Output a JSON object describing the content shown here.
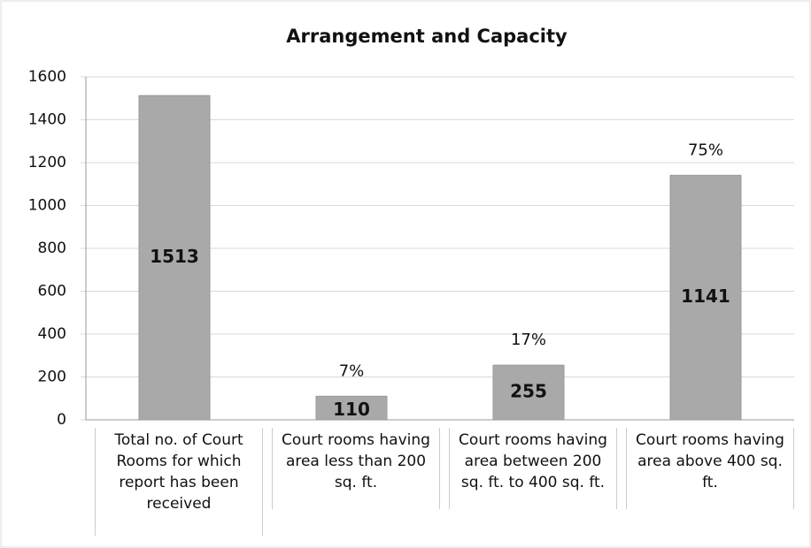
{
  "chart_data": {
    "type": "bar",
    "title": "Arrangement and Capacity",
    "categories": [
      "Total no. of Court Rooms for which report has been received",
      "Court rooms having area less than 200 sq. ft.",
      "Court rooms having area between 200 sq. ft. to 400 sq. ft.",
      "Court rooms having area above 400 sq. ft."
    ],
    "values": [
      1513,
      110,
      255,
      1141
    ],
    "percent_labels": [
      null,
      "7%",
      "17%",
      "75%"
    ],
    "color": "#a9a9a9",
    "ylim": [
      0,
      1600
    ],
    "yticks": [
      0,
      200,
      400,
      600,
      800,
      1000,
      1200,
      1400,
      1600
    ],
    "grid": true
  }
}
